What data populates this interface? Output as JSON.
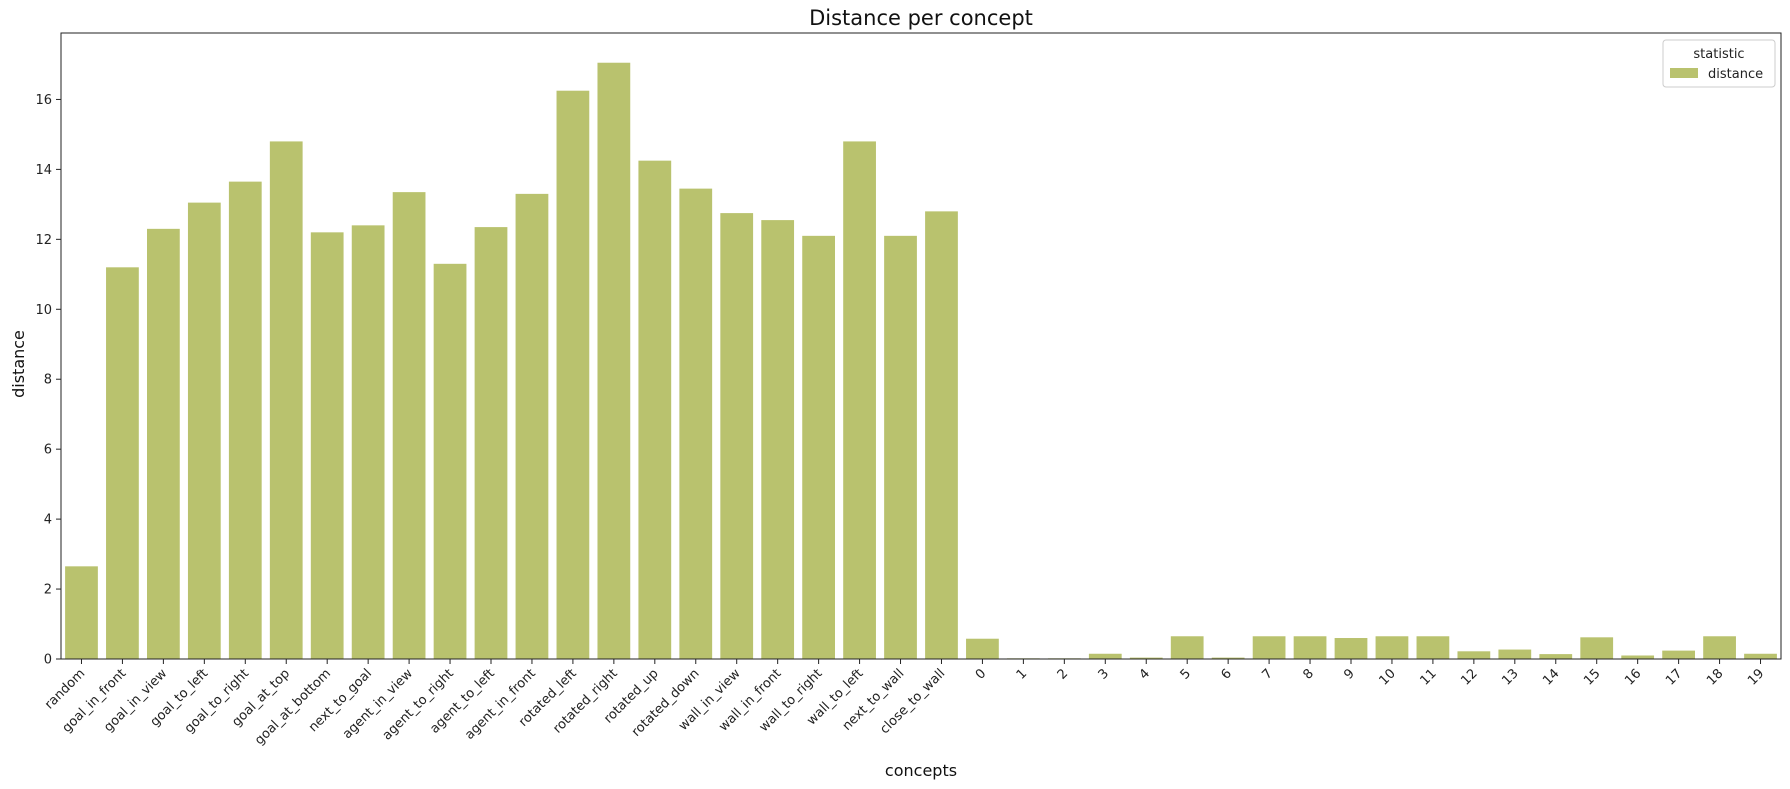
{
  "chart_data": {
    "type": "bar",
    "title": "Distance per concept",
    "xlabel": "concepts",
    "ylabel": "distance",
    "ylim": [
      0,
      17.9
    ],
    "yticks": [
      0,
      2,
      4,
      6,
      8,
      10,
      12,
      14,
      16
    ],
    "legend": {
      "title": "statistic",
      "position": "top-right"
    },
    "bar_color": "#b9c26e",
    "categories": [
      "random",
      "goal_in_front",
      "goal_in_view",
      "goal_to_left",
      "goal_to_right",
      "goal_at_top",
      "goal_at_bottom",
      "next_to_goal",
      "agent_in_view",
      "agent_to_right",
      "agent_to_left",
      "agent_in_front",
      "rotated_left",
      "rotated_right",
      "rotated_up",
      "rotated_down",
      "wall_in_view",
      "wall_in_front",
      "wall_to_right",
      "wall_to_left",
      "next_to_wall",
      "close_to_wall",
      "0",
      "1",
      "2",
      "3",
      "4",
      "5",
      "6",
      "7",
      "8",
      "9",
      "10",
      "11",
      "12",
      "13",
      "14",
      "15",
      "16",
      "17",
      "18",
      "19"
    ],
    "series": [
      {
        "name": "distance",
        "values": [
          2.65,
          11.2,
          12.3,
          13.05,
          13.65,
          14.8,
          12.2,
          12.4,
          13.35,
          11.3,
          12.35,
          13.3,
          16.25,
          17.05,
          14.25,
          13.45,
          12.75,
          12.55,
          12.1,
          14.8,
          12.1,
          12.8,
          0.58,
          0.02,
          0.02,
          0.15,
          0.04,
          0.65,
          0.04,
          0.65,
          0.65,
          0.6,
          0.65,
          0.65,
          0.22,
          0.27,
          0.14,
          0.62,
          0.1,
          0.24,
          0.65,
          0.15
        ]
      }
    ]
  }
}
